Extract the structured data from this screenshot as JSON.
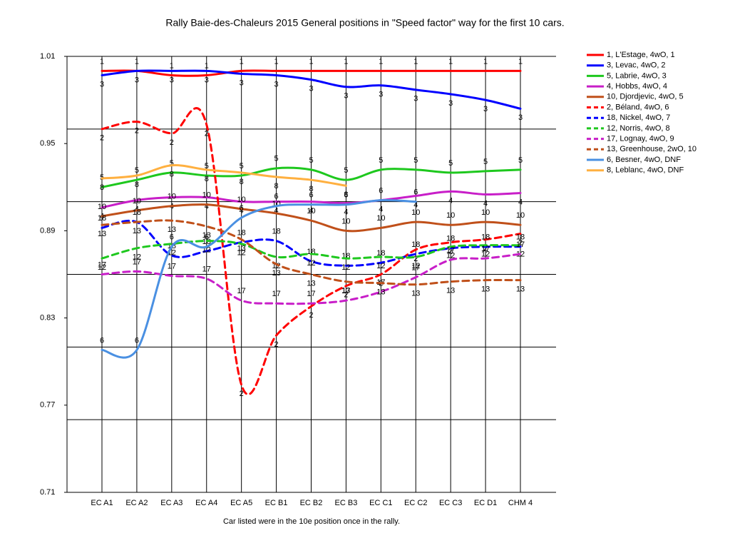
{
  "chart_data": {
    "type": "line",
    "title": "Rally Baie-des-Chaleurs 2015  General positions in \"Speed factor\" way for the first 10 cars.",
    "footnote": "Car listed were in the 10e position once in the rally.",
    "categories": [
      "EC A1",
      "EC A2",
      "EC A3",
      "EC A4",
      "EC A5",
      "EC B1",
      "EC B2",
      "EC B3",
      "EC C1",
      "EC C2",
      "EC C3",
      "EC D1",
      "CHM 4"
    ],
    "ylim": [
      0.71,
      1.01
    ],
    "yticks": [
      0.71,
      0.77,
      0.83,
      0.89,
      0.95,
      1.01
    ],
    "ygrid": [
      0.71,
      0.76,
      0.81,
      0.86,
      0.91,
      0.96,
      1.01
    ],
    "xgrid": true,
    "smooth": true,
    "legend": "right",
    "series": [
      {
        "name": "1, L'Estage, 4wO, 1",
        "color": "#ff0000",
        "dashed": false,
        "values": [
          1.0,
          1.0,
          0.997,
          0.997,
          1.0,
          1.0,
          1.0,
          1.0,
          1.0,
          1.0,
          1.0,
          1.0,
          1.0
        ],
        "value_labels": [
          "1",
          "1",
          "1",
          "1",
          "1",
          "1",
          "1",
          "1",
          "1",
          "1",
          "1",
          "1",
          "1"
        ]
      },
      {
        "name": "3, Levac, 4wO, 2",
        "color": "#0000ff",
        "dashed": false,
        "values": [
          0.997,
          1.0,
          1.0,
          1.0,
          0.998,
          0.997,
          0.994,
          0.989,
          0.99,
          0.987,
          0.984,
          0.98,
          0.974
        ],
        "value_labels": [
          "3",
          "3",
          "3",
          "3",
          "3",
          "3",
          "3",
          "3",
          "3",
          "3",
          "3",
          "3",
          "3"
        ]
      },
      {
        "name": "5, Labrie, 4wO, 3",
        "color": "#1ec81e",
        "dashed": false,
        "values": [
          0.92,
          0.925,
          0.93,
          0.928,
          0.928,
          0.933,
          0.932,
          0.925,
          0.932,
          0.932,
          0.93,
          0.931,
          0.932
        ],
        "value_labels": [
          "5",
          "5",
          "5",
          "5",
          "5",
          "5",
          "5",
          "5",
          "5",
          "5",
          "5",
          "5",
          "5"
        ]
      },
      {
        "name": "4, Hobbs, 4wO, 4",
        "color": "#c81ec8",
        "dashed": false,
        "values": [
          0.906,
          0.911,
          0.913,
          0.913,
          0.91,
          0.91,
          0.91,
          0.909,
          0.911,
          0.914,
          0.917,
          0.915,
          0.916
        ],
        "value_labels": [
          "4",
          "4",
          "4",
          "4",
          "4",
          "4",
          "4",
          "4",
          "4",
          "4",
          "4",
          "4",
          "4"
        ]
      },
      {
        "name": "10, Djordjevic, 4wO, 5",
        "color": "#c0501a",
        "dashed": false,
        "values": [
          0.9,
          0.904,
          0.907,
          0.908,
          0.905,
          0.902,
          0.897,
          0.89,
          0.892,
          0.896,
          0.894,
          0.896,
          0.894
        ],
        "value_labels": [
          "10",
          "10",
          "10",
          "10",
          "10",
          "10",
          "10",
          "10",
          "10",
          "10",
          "10",
          "10",
          "10"
        ]
      },
      {
        "name": "2, Béland, 4wO, 6",
        "color": "#ff0000",
        "dashed": true,
        "values": [
          0.96,
          0.965,
          0.957,
          0.963,
          0.784,
          0.818,
          0.838,
          0.852,
          0.86,
          0.877,
          0.882,
          0.884,
          0.888
        ],
        "value_labels": [
          "2",
          "2",
          "2",
          "2",
          "2",
          "2",
          "2",
          "2",
          "2",
          "2",
          "2",
          "2",
          "2"
        ]
      },
      {
        "name": "18, Nickel, 4wO, 7",
        "color": "#0000ff",
        "dashed": true,
        "values": [
          0.892,
          0.896,
          0.873,
          0.876,
          0.882,
          0.883,
          0.869,
          0.866,
          0.868,
          0.874,
          0.878,
          0.879,
          0.879
        ],
        "value_labels": [
          "18",
          "18",
          "18",
          "18",
          "18",
          "18",
          "18",
          "18",
          "18",
          "18",
          "18",
          "18",
          "18"
        ]
      },
      {
        "name": "12, Norris, 4wO, 8",
        "color": "#1ec81e",
        "dashed": true,
        "values": [
          0.871,
          0.878,
          0.881,
          0.883,
          0.881,
          0.872,
          0.874,
          0.871,
          0.872,
          0.872,
          0.879,
          0.88,
          0.88
        ],
        "value_labels": [
          "12",
          "12",
          "12",
          "12",
          "12",
          "12",
          "12",
          "12",
          "12",
          "12",
          "12",
          "12",
          "12"
        ]
      },
      {
        "name": "17, Lognay, 4wO, 9",
        "color": "#c81ec8",
        "dashed": true,
        "values": [
          0.86,
          0.862,
          0.859,
          0.857,
          0.842,
          0.84,
          0.84,
          0.842,
          0.848,
          0.858,
          0.87,
          0.871,
          0.874
        ],
        "value_labels": [
          "17",
          "17",
          "17",
          "17",
          "17",
          "17",
          "17",
          "17",
          "17",
          "17",
          "17",
          "17",
          "17"
        ]
      },
      {
        "name": "13, Greenhouse, 2wO, 10",
        "color": "#c0501a",
        "dashed": true,
        "values": [
          0.894,
          0.896,
          0.897,
          0.893,
          0.884,
          0.867,
          0.86,
          0.855,
          0.854,
          0.853,
          0.855,
          0.856,
          0.856
        ],
        "value_labels": [
          "13",
          "13",
          "13",
          "13",
          "13",
          "13",
          "13",
          "13",
          "13",
          "13",
          "13",
          "13",
          "13"
        ]
      },
      {
        "name": "6, Besner, 4wO, DNF",
        "color": "#4a90e2",
        "dashed": false,
        "values": [
          0.808,
          0.808,
          0.879,
          0.879,
          0.899,
          0.907,
          0.908,
          0.908,
          0.911,
          0.91,
          null,
          null,
          null
        ],
        "value_labels": [
          "6",
          "6",
          "6",
          "6",
          "6",
          "6",
          "6",
          "6",
          "6",
          "6",
          null,
          null,
          null
        ]
      },
      {
        "name": "8, Leblanc, 4wO, DNF",
        "color": "#ffb040",
        "dashed": false,
        "values": [
          0.926,
          0.928,
          0.935,
          0.932,
          0.93,
          0.927,
          0.925,
          0.921,
          null,
          null,
          null,
          null,
          null
        ],
        "value_labels": [
          "8",
          "8",
          "8",
          "8",
          "8",
          "8",
          "8",
          "8",
          null,
          null,
          null,
          null,
          null
        ]
      }
    ]
  }
}
